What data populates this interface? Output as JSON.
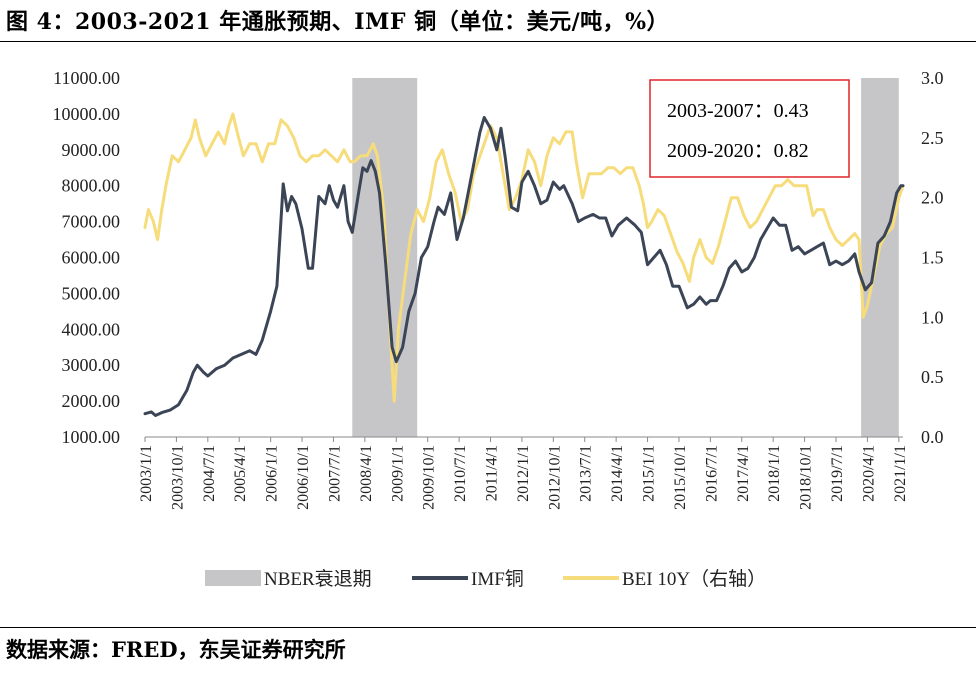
{
  "title": "图 4：2003-2021 年通胀预期、IMF 铜（单位：美元/吨，%）",
  "source": "数据来源：FRED，东吴证券研究所",
  "annotation": {
    "lines": [
      "2003-2007：0.43",
      "2009-2020：0.82"
    ],
    "border_color": "#e0262a"
  },
  "chart_data": {
    "type": "line",
    "title": "2003-2021 年通胀预期、IMF 铜（单位：美元/吨，%）",
    "x_range": [
      2003.0,
      2021.1
    ],
    "x_ticks": [
      {
        "label": "2003/1/1",
        "t": 2003.0
      },
      {
        "label": "2003/10/1",
        "t": 2003.75
      },
      {
        "label": "2004/7/1",
        "t": 2004.5
      },
      {
        "label": "2005/4/1",
        "t": 2005.25
      },
      {
        "label": "2006/1/1",
        "t": 2006.0
      },
      {
        "label": "2006/10/1",
        "t": 2006.75
      },
      {
        "label": "2007/7/1",
        "t": 2007.5
      },
      {
        "label": "2008/4/1",
        "t": 2008.25
      },
      {
        "label": "2009/1/1",
        "t": 2009.0
      },
      {
        "label": "2009/10/1",
        "t": 2009.75
      },
      {
        "label": "2010/7/1",
        "t": 2010.5
      },
      {
        "label": "2011/4/1",
        "t": 2011.25
      },
      {
        "label": "2012/1/1",
        "t": 2012.0
      },
      {
        "label": "2012/10/1",
        "t": 2012.75
      },
      {
        "label": "2013/7/1",
        "t": 2013.5
      },
      {
        "label": "2014/4/1",
        "t": 2014.25
      },
      {
        "label": "2015/1/1",
        "t": 2015.0
      },
      {
        "label": "2015/10/1",
        "t": 2015.75
      },
      {
        "label": "2016/7/1",
        "t": 2016.5
      },
      {
        "label": "2017/4/1",
        "t": 2017.25
      },
      {
        "label": "2018/1/1",
        "t": 2018.0
      },
      {
        "label": "2018/10/1",
        "t": 2018.75
      },
      {
        "label": "2019/7/1",
        "t": 2019.5
      },
      {
        "label": "2020/4/1",
        "t": 2020.25
      },
      {
        "label": "2021/1/1",
        "t": 2021.0
      }
    ],
    "y_left": {
      "range": [
        1000,
        11000
      ],
      "ticks": [
        "1000.00",
        "2000.00",
        "3000.00",
        "4000.00",
        "5000.00",
        "6000.00",
        "7000.00",
        "8000.00",
        "9000.00",
        "10000.00",
        "11000.00"
      ]
    },
    "y_right": {
      "range": [
        0.0,
        3.0
      ],
      "ticks": [
        "0.0",
        "0.5",
        "1.0",
        "1.5",
        "2.0",
        "2.5",
        "3.0"
      ],
      "label": "右轴"
    },
    "recessions": [
      {
        "name": "NBER衰退期",
        "start": 2007.95,
        "end": 2009.5
      },
      {
        "name": "NBER衰退期",
        "start": 2020.1,
        "end": 2021.0
      }
    ],
    "legend": [
      {
        "label": "NBER衰退期",
        "kind": "area",
        "color": "#c6c6c8"
      },
      {
        "label": "IMF铜",
        "kind": "line",
        "color": "#3b4556"
      },
      {
        "label": "BEI 10Y（右轴）",
        "kind": "line",
        "color": "#f6dc7a"
      }
    ],
    "series": [
      {
        "name": "IMF铜",
        "axis": "left",
        "color": "#3b4556",
        "points": [
          [
            2003.0,
            1650
          ],
          [
            2003.15,
            1700
          ],
          [
            2003.25,
            1600
          ],
          [
            2003.4,
            1680
          ],
          [
            2003.6,
            1750
          ],
          [
            2003.8,
            1900
          ],
          [
            2004.0,
            2300
          ],
          [
            2004.15,
            2800
          ],
          [
            2004.25,
            3000
          ],
          [
            2004.4,
            2800
          ],
          [
            2004.5,
            2700
          ],
          [
            2004.7,
            2900
          ],
          [
            2004.9,
            3000
          ],
          [
            2005.1,
            3200
          ],
          [
            2005.3,
            3300
          ],
          [
            2005.5,
            3400
          ],
          [
            2005.65,
            3300
          ],
          [
            2005.8,
            3700
          ],
          [
            2006.0,
            4500
          ],
          [
            2006.15,
            5200
          ],
          [
            2006.3,
            8050
          ],
          [
            2006.4,
            7300
          ],
          [
            2006.5,
            7700
          ],
          [
            2006.6,
            7500
          ],
          [
            2006.75,
            6800
          ],
          [
            2006.9,
            5700
          ],
          [
            2007.0,
            5700
          ],
          [
            2007.15,
            7700
          ],
          [
            2007.3,
            7500
          ],
          [
            2007.4,
            8000
          ],
          [
            2007.5,
            7600
          ],
          [
            2007.6,
            7400
          ],
          [
            2007.75,
            8000
          ],
          [
            2007.85,
            7000
          ],
          [
            2007.95,
            6700
          ],
          [
            2008.1,
            7800
          ],
          [
            2008.2,
            8500
          ],
          [
            2008.3,
            8400
          ],
          [
            2008.4,
            8700
          ],
          [
            2008.5,
            8400
          ],
          [
            2008.6,
            7800
          ],
          [
            2008.75,
            5800
          ],
          [
            2008.9,
            3500
          ],
          [
            2009.0,
            3100
          ],
          [
            2009.15,
            3500
          ],
          [
            2009.3,
            4500
          ],
          [
            2009.45,
            5000
          ],
          [
            2009.6,
            6000
          ],
          [
            2009.75,
            6300
          ],
          [
            2009.9,
            7000
          ],
          [
            2010.0,
            7400
          ],
          [
            2010.15,
            7200
          ],
          [
            2010.3,
            7800
          ],
          [
            2010.45,
            6500
          ],
          [
            2010.6,
            7100
          ],
          [
            2010.75,
            8000
          ],
          [
            2010.9,
            8900
          ],
          [
            2011.0,
            9500
          ],
          [
            2011.1,
            9900
          ],
          [
            2011.25,
            9600
          ],
          [
            2011.4,
            9000
          ],
          [
            2011.5,
            9600
          ],
          [
            2011.6,
            8800
          ],
          [
            2011.75,
            7400
          ],
          [
            2011.9,
            7300
          ],
          [
            2012.0,
            8100
          ],
          [
            2012.15,
            8400
          ],
          [
            2012.3,
            8000
          ],
          [
            2012.45,
            7500
          ],
          [
            2012.6,
            7600
          ],
          [
            2012.75,
            8100
          ],
          [
            2012.9,
            7900
          ],
          [
            2013.0,
            8000
          ],
          [
            2013.2,
            7500
          ],
          [
            2013.35,
            7000
          ],
          [
            2013.5,
            7100
          ],
          [
            2013.7,
            7200
          ],
          [
            2013.85,
            7100
          ],
          [
            2014.0,
            7100
          ],
          [
            2014.15,
            6600
          ],
          [
            2014.3,
            6900
          ],
          [
            2014.5,
            7100
          ],
          [
            2014.7,
            6900
          ],
          [
            2014.85,
            6700
          ],
          [
            2015.0,
            5800
          ],
          [
            2015.15,
            6000
          ],
          [
            2015.3,
            6200
          ],
          [
            2015.45,
            5800
          ],
          [
            2015.6,
            5200
          ],
          [
            2015.75,
            5200
          ],
          [
            2015.95,
            4600
          ],
          [
            2016.1,
            4700
          ],
          [
            2016.25,
            4900
          ],
          [
            2016.4,
            4700
          ],
          [
            2016.5,
            4800
          ],
          [
            2016.65,
            4800
          ],
          [
            2016.8,
            5200
          ],
          [
            2016.95,
            5700
          ],
          [
            2017.1,
            5900
          ],
          [
            2017.25,
            5600
          ],
          [
            2017.4,
            5700
          ],
          [
            2017.55,
            6000
          ],
          [
            2017.7,
            6500
          ],
          [
            2017.85,
            6800
          ],
          [
            2018.0,
            7100
          ],
          [
            2018.15,
            6900
          ],
          [
            2018.3,
            6900
          ],
          [
            2018.45,
            6200
          ],
          [
            2018.6,
            6300
          ],
          [
            2018.75,
            6100
          ],
          [
            2018.9,
            6200
          ],
          [
            2019.05,
            6300
          ],
          [
            2019.2,
            6400
          ],
          [
            2019.35,
            5800
          ],
          [
            2019.5,
            5900
          ],
          [
            2019.65,
            5800
          ],
          [
            2019.8,
            5900
          ],
          [
            2019.95,
            6100
          ],
          [
            2020.05,
            5600
          ],
          [
            2020.2,
            5100
          ],
          [
            2020.35,
            5300
          ],
          [
            2020.5,
            6400
          ],
          [
            2020.65,
            6600
          ],
          [
            2020.8,
            7000
          ],
          [
            2020.95,
            7800
          ],
          [
            2021.05,
            8000
          ],
          [
            2021.1,
            8000
          ]
        ]
      },
      {
        "name": "BEI 10Y（右轴）",
        "axis": "right",
        "color": "#f6dc7a",
        "points": [
          [
            2003.0,
            1.75
          ],
          [
            2003.08,
            1.9
          ],
          [
            2003.2,
            1.8
          ],
          [
            2003.3,
            1.65
          ],
          [
            2003.4,
            1.9
          ],
          [
            2003.5,
            2.1
          ],
          [
            2003.65,
            2.35
          ],
          [
            2003.8,
            2.3
          ],
          [
            2003.95,
            2.4
          ],
          [
            2004.1,
            2.5
          ],
          [
            2004.2,
            2.65
          ],
          [
            2004.3,
            2.5
          ],
          [
            2004.45,
            2.35
          ],
          [
            2004.6,
            2.45
          ],
          [
            2004.75,
            2.55
          ],
          [
            2004.9,
            2.45
          ],
          [
            2005.0,
            2.6
          ],
          [
            2005.1,
            2.7
          ],
          [
            2005.2,
            2.55
          ],
          [
            2005.35,
            2.35
          ],
          [
            2005.5,
            2.45
          ],
          [
            2005.65,
            2.45
          ],
          [
            2005.8,
            2.3
          ],
          [
            2005.95,
            2.45
          ],
          [
            2006.1,
            2.45
          ],
          [
            2006.25,
            2.65
          ],
          [
            2006.4,
            2.6
          ],
          [
            2006.55,
            2.5
          ],
          [
            2006.7,
            2.35
          ],
          [
            2006.85,
            2.3
          ],
          [
            2007.0,
            2.35
          ],
          [
            2007.15,
            2.35
          ],
          [
            2007.3,
            2.4
          ],
          [
            2007.45,
            2.35
          ],
          [
            2007.6,
            2.3
          ],
          [
            2007.75,
            2.4
          ],
          [
            2007.9,
            2.3
          ],
          [
            2008.0,
            2.3
          ],
          [
            2008.15,
            2.35
          ],
          [
            2008.3,
            2.35
          ],
          [
            2008.45,
            2.45
          ],
          [
            2008.55,
            2.35
          ],
          [
            2008.7,
            1.9
          ],
          [
            2008.85,
            0.9
          ],
          [
            2008.95,
            0.3
          ],
          [
            2009.05,
            0.9
          ],
          [
            2009.2,
            1.3
          ],
          [
            2009.35,
            1.7
          ],
          [
            2009.5,
            1.9
          ],
          [
            2009.65,
            1.8
          ],
          [
            2009.8,
            2.0
          ],
          [
            2009.95,
            2.3
          ],
          [
            2010.1,
            2.4
          ],
          [
            2010.25,
            2.2
          ],
          [
            2010.4,
            2.05
          ],
          [
            2010.55,
            1.8
          ],
          [
            2010.7,
            1.9
          ],
          [
            2010.85,
            2.2
          ],
          [
            2011.0,
            2.35
          ],
          [
            2011.15,
            2.5
          ],
          [
            2011.25,
            2.6
          ],
          [
            2011.4,
            2.5
          ],
          [
            2011.55,
            2.2
          ],
          [
            2011.7,
            1.9
          ],
          [
            2011.85,
            2.0
          ],
          [
            2012.0,
            2.15
          ],
          [
            2012.15,
            2.4
          ],
          [
            2012.3,
            2.3
          ],
          [
            2012.45,
            2.1
          ],
          [
            2012.6,
            2.35
          ],
          [
            2012.75,
            2.5
          ],
          [
            2012.9,
            2.45
          ],
          [
            2013.05,
            2.55
          ],
          [
            2013.2,
            2.55
          ],
          [
            2013.3,
            2.3
          ],
          [
            2013.45,
            2.0
          ],
          [
            2013.6,
            2.2
          ],
          [
            2013.75,
            2.2
          ],
          [
            2013.9,
            2.2
          ],
          [
            2014.05,
            2.25
          ],
          [
            2014.2,
            2.25
          ],
          [
            2014.35,
            2.2
          ],
          [
            2014.5,
            2.25
          ],
          [
            2014.65,
            2.25
          ],
          [
            2014.8,
            2.1
          ],
          [
            2014.9,
            1.95
          ],
          [
            2015.0,
            1.75
          ],
          [
            2015.1,
            1.8
          ],
          [
            2015.25,
            1.9
          ],
          [
            2015.4,
            1.85
          ],
          [
            2015.55,
            1.7
          ],
          [
            2015.7,
            1.55
          ],
          [
            2015.85,
            1.45
          ],
          [
            2016.0,
            1.3
          ],
          [
            2016.1,
            1.5
          ],
          [
            2016.25,
            1.65
          ],
          [
            2016.4,
            1.5
          ],
          [
            2016.55,
            1.45
          ],
          [
            2016.7,
            1.6
          ],
          [
            2016.85,
            1.8
          ],
          [
            2017.0,
            2.0
          ],
          [
            2017.15,
            2.0
          ],
          [
            2017.3,
            1.85
          ],
          [
            2017.45,
            1.75
          ],
          [
            2017.6,
            1.8
          ],
          [
            2017.75,
            1.9
          ],
          [
            2017.9,
            2.0
          ],
          [
            2018.05,
            2.1
          ],
          [
            2018.2,
            2.1
          ],
          [
            2018.35,
            2.15
          ],
          [
            2018.5,
            2.1
          ],
          [
            2018.65,
            2.1
          ],
          [
            2018.8,
            2.1
          ],
          [
            2018.95,
            1.85
          ],
          [
            2019.05,
            1.9
          ],
          [
            2019.2,
            1.9
          ],
          [
            2019.35,
            1.75
          ],
          [
            2019.5,
            1.65
          ],
          [
            2019.65,
            1.6
          ],
          [
            2019.8,
            1.65
          ],
          [
            2019.95,
            1.7
          ],
          [
            2020.05,
            1.65
          ],
          [
            2020.15,
            1.0
          ],
          [
            2020.25,
            1.1
          ],
          [
            2020.4,
            1.35
          ],
          [
            2020.55,
            1.6
          ],
          [
            2020.7,
            1.7
          ],
          [
            2020.85,
            1.75
          ],
          [
            2021.0,
            2.0
          ],
          [
            2021.1,
            2.1
          ]
        ]
      }
    ]
  }
}
